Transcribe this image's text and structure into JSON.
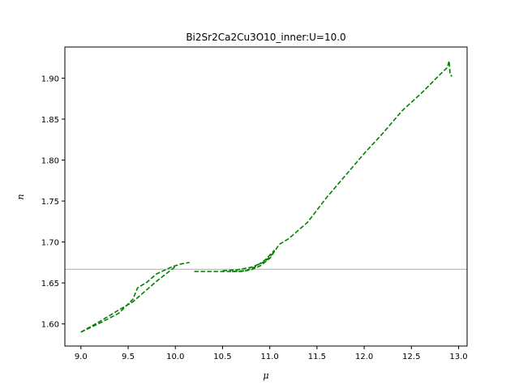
{
  "chart_data": {
    "type": "line",
    "title": "Bi2Sr2Ca2Cu3O10_inner:U=10.0",
    "xlabel": "μ",
    "ylabel": "n",
    "xlim": [
      8.83,
      13.09
    ],
    "ylim": [
      1.573,
      1.938
    ],
    "xticks": [
      9.0,
      9.5,
      10.0,
      10.5,
      11.0,
      11.5,
      12.0,
      12.5,
      13.0
    ],
    "xtick_labels": [
      "9.0",
      "9.5",
      "10.0",
      "10.5",
      "11.0",
      "11.5",
      "12.0",
      "12.5",
      "13.0"
    ],
    "yticks": [
      1.6,
      1.65,
      1.7,
      1.75,
      1.8,
      1.85,
      1.9
    ],
    "ytick_labels": [
      "1.60",
      "1.65",
      "1.70",
      "1.75",
      "1.80",
      "1.85",
      "1.90"
    ],
    "grid": false,
    "reference_line": {
      "y": 1.6667,
      "color": "#aaaaaa"
    },
    "series": [
      {
        "color": "#008000",
        "style": "dashed",
        "segments": [
          [
            [
              9.0,
              1.59
            ],
            [
              9.2,
              1.601
            ],
            [
              9.4,
              1.613
            ],
            [
              9.55,
              1.63
            ],
            [
              9.6,
              1.644
            ],
            [
              9.7,
              1.651
            ],
            [
              9.8,
              1.661
            ],
            [
              9.95,
              1.669
            ],
            [
              10.05,
              1.673
            ],
            [
              10.15,
              1.675
            ]
          ],
          [
            [
              9.0,
              1.59
            ],
            [
              9.2,
              1.603
            ],
            [
              9.4,
              1.617
            ],
            [
              9.55,
              1.627
            ],
            [
              9.65,
              1.637
            ],
            [
              9.8,
              1.652
            ],
            [
              9.9,
              1.661
            ],
            [
              10.0,
              1.67
            ]
          ],
          [
            [
              10.2,
              1.664
            ],
            [
              10.4,
              1.664
            ],
            [
              10.6,
              1.664
            ],
            [
              10.75,
              1.665
            ],
            [
              10.85,
              1.67
            ],
            [
              10.95,
              1.678
            ],
            [
              11.05,
              1.69
            ]
          ],
          [
            [
              10.5,
              1.665
            ],
            [
              10.65,
              1.666
            ],
            [
              10.8,
              1.669
            ],
            [
              10.95,
              1.676
            ],
            [
              11.05,
              1.688
            ]
          ],
          [
            [
              10.6,
              1.664
            ],
            [
              10.7,
              1.664
            ],
            [
              10.8,
              1.666
            ],
            [
              10.9,
              1.671
            ],
            [
              11.0,
              1.68
            ],
            [
              11.1,
              1.697
            ],
            [
              11.2,
              1.704
            ],
            [
              11.4,
              1.724
            ],
            [
              11.6,
              1.754
            ],
            [
              11.8,
              1.781
            ],
            [
              12.0,
              1.808
            ],
            [
              12.2,
              1.833
            ],
            [
              12.4,
              1.86
            ],
            [
              12.6,
              1.881
            ],
            [
              12.8,
              1.904
            ],
            [
              12.88,
              1.913
            ],
            [
              12.9,
              1.921
            ],
            [
              12.91,
              1.905
            ],
            [
              12.93,
              1.902
            ]
          ]
        ]
      }
    ]
  }
}
